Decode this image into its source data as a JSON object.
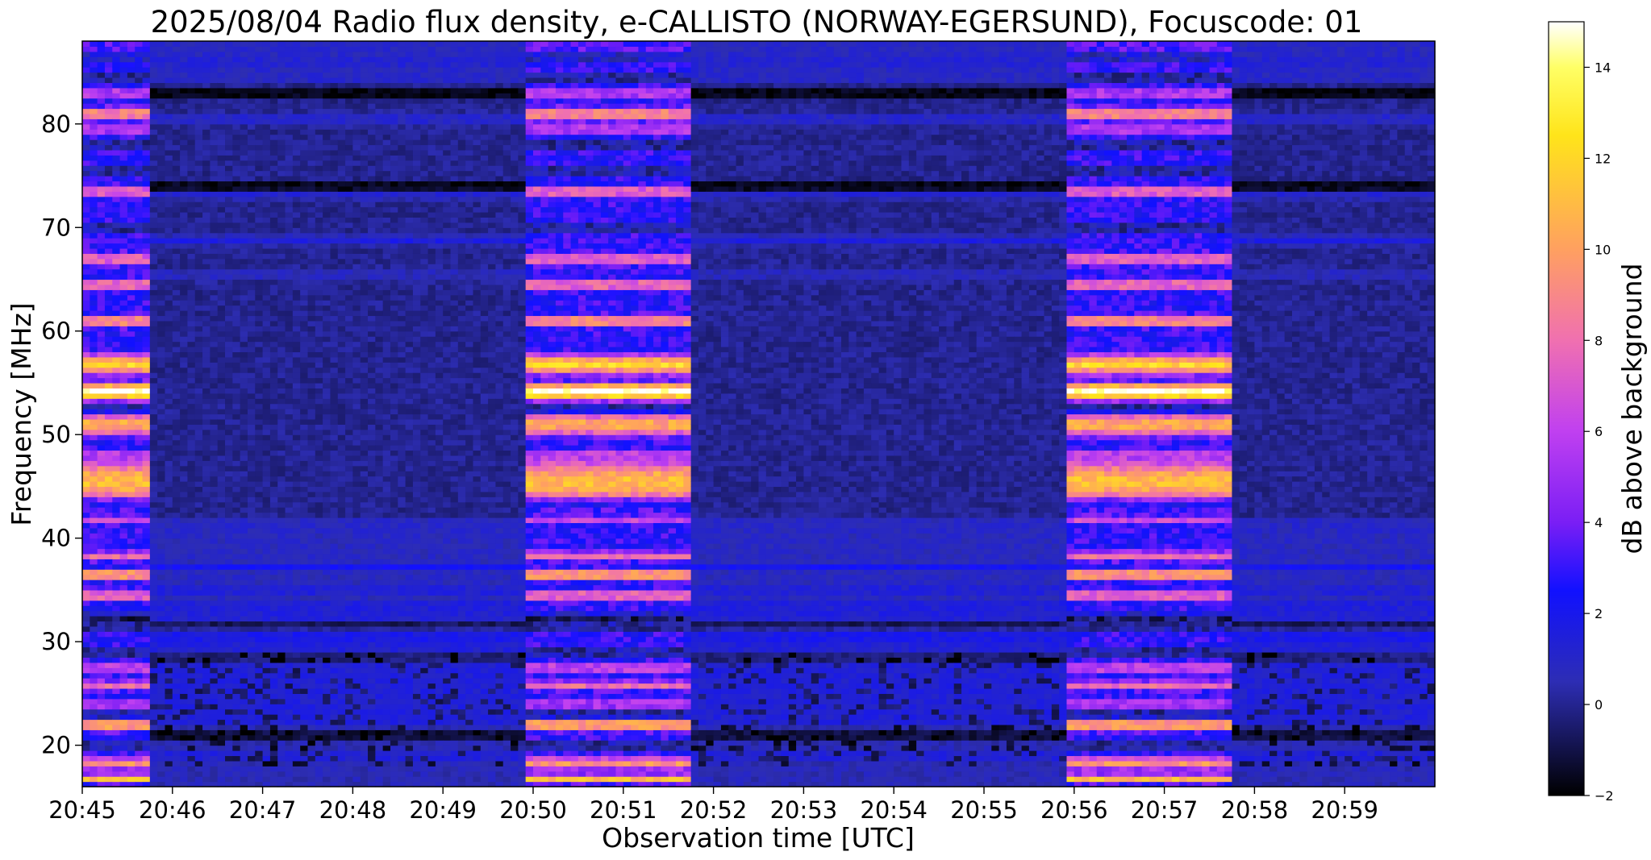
{
  "chart_data": {
    "type": "heatmap",
    "title": "2025/08/04  Radio flux density, e-CALLISTO (NORWAY-EGERSUND), Focuscode: 01",
    "xlabel": "Observation time [UTC]",
    "ylabel": "Frequency [MHz]",
    "x_range": [
      "20:45:00",
      "20:59:55"
    ],
    "xlim_minutes": [
      0,
      15.0
    ],
    "ylim": [
      16,
      88
    ],
    "x_ticks": [
      {
        "minute": 0,
        "label": "20:45"
      },
      {
        "minute": 1,
        "label": "20:46"
      },
      {
        "minute": 2,
        "label": "20:47"
      },
      {
        "minute": 3,
        "label": "20:48"
      },
      {
        "minute": 4,
        "label": "20:49"
      },
      {
        "minute": 5,
        "label": "20:50"
      },
      {
        "minute": 6,
        "label": "20:51"
      },
      {
        "minute": 7,
        "label": "20:52"
      },
      {
        "minute": 8,
        "label": "20:53"
      },
      {
        "minute": 9,
        "label": "20:54"
      },
      {
        "minute": 10,
        "label": "20:55"
      },
      {
        "minute": 11,
        "label": "20:56"
      },
      {
        "minute": 12,
        "label": "20:57"
      },
      {
        "minute": 13,
        "label": "20:58"
      },
      {
        "minute": 14,
        "label": "20:59"
      }
    ],
    "y_ticks": [
      20,
      30,
      40,
      50,
      60,
      70,
      80
    ],
    "colorbar": {
      "label": "dB above background",
      "range": [
        -2,
        15
      ],
      "ticks": [
        -2,
        0,
        2,
        4,
        6,
        8,
        10,
        12,
        14
      ],
      "colormap": "gnuplot2",
      "color_stops": [
        {
          "value": -2,
          "color": "#000000"
        },
        {
          "value": 0.5,
          "color": "#2d2db4"
        },
        {
          "value": 2.5,
          "color": "#1111ff"
        },
        {
          "value": 4,
          "color": "#7a1ef5"
        },
        {
          "value": 6,
          "color": "#c040f0"
        },
        {
          "value": 8,
          "color": "#f070b0"
        },
        {
          "value": 10,
          "color": "#ffa060"
        },
        {
          "value": 12.5,
          "color": "#ffe41a"
        },
        {
          "value": 14,
          "color": "#ffff66"
        },
        {
          "value": 15,
          "color": "#ffffff"
        }
      ]
    },
    "bright_intervals_minutes": [
      {
        "start": 0.0,
        "end": 0.75
      },
      {
        "start": 4.9,
        "end": 6.75
      },
      {
        "start": 10.9,
        "end": 12.75
      }
    ],
    "background_level_db": 0,
    "grid": false
  }
}
